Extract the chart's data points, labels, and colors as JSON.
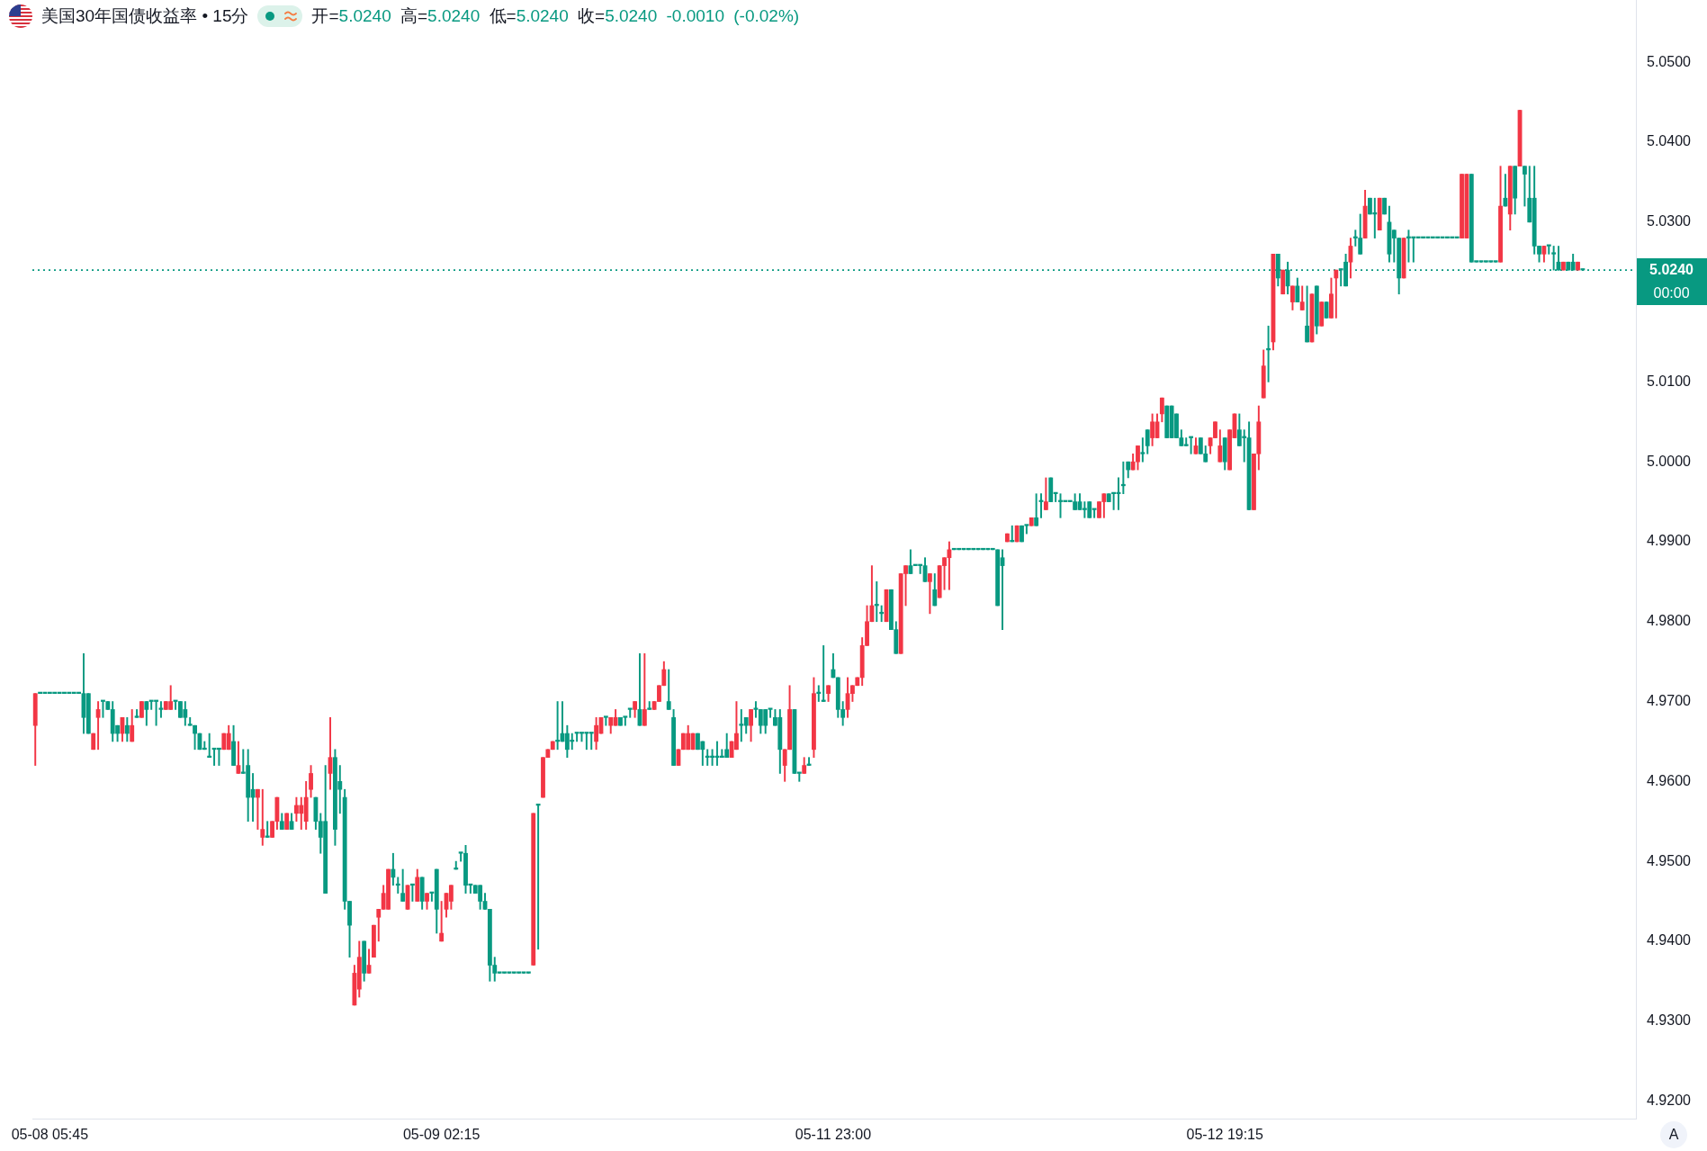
{
  "chart_data": {
    "type": "candlestick",
    "title": "美国30年国债收益率 • 15分",
    "subtitle": "开=5.0240 高=5.0240 低=5.0240 收=5.0240 -0.0010 (-0.02%)",
    "categories": [
      null,
      null,
      null,
      "05-08 05:45",
      null,
      null,
      null,
      null,
      null,
      null,
      null,
      null,
      null,
      null,
      null,
      null,
      null,
      null,
      null,
      null,
      null,
      null,
      null,
      null,
      null,
      null,
      null,
      null,
      null,
      null,
      null,
      null,
      null,
      null,
      null,
      null,
      null,
      null,
      null,
      null,
      null,
      null,
      null,
      null,
      null,
      null,
      null,
      null,
      null,
      null,
      null,
      null,
      null,
      null,
      null,
      null,
      null,
      null,
      null,
      null,
      null,
      null,
      null,
      null,
      null,
      null,
      null,
      null,
      null,
      null,
      null,
      null,
      null,
      null,
      null,
      null,
      null,
      null,
      null,
      null,
      null,
      null,
      null,
      null,
      "05-09 02:15",
      null,
      null,
      null,
      null,
      null,
      null,
      null,
      null,
      null,
      null,
      null,
      null,
      null,
      null,
      null,
      null,
      null,
      null,
      null,
      null,
      null,
      null,
      null,
      null,
      null,
      null,
      null,
      null,
      null,
      null,
      null,
      null,
      null,
      null,
      null,
      null,
      null,
      null,
      null,
      null,
      null,
      null,
      null,
      null,
      null,
      null,
      null,
      null,
      null,
      null,
      null,
      null,
      null,
      null,
      null,
      null,
      null,
      null,
      null,
      null,
      null,
      null,
      null,
      null,
      null,
      null,
      null,
      null,
      null,
      null,
      null,
      null,
      null,
      null,
      null,
      null,
      null,
      null,
      null,
      null,
      "05-11 23:00",
      null,
      null,
      null,
      null,
      null,
      null,
      null,
      null,
      null,
      null,
      null,
      null,
      null,
      null,
      null,
      null,
      null,
      null,
      null,
      null,
      null,
      null,
      null,
      null,
      null,
      null,
      null,
      null,
      null,
      null,
      null,
      null,
      null,
      null,
      null,
      null,
      null,
      null,
      null,
      null,
      null,
      null,
      null,
      null,
      null,
      null,
      null,
      null,
      null,
      null,
      null,
      null,
      null,
      null,
      null,
      null,
      null,
      null,
      null,
      null,
      null,
      null,
      null,
      null,
      null,
      null,
      null,
      null,
      null,
      null,
      null,
      null,
      null,
      null,
      null,
      null,
      null,
      null,
      null,
      null,
      "05-12 19:15",
      null,
      null,
      null,
      null,
      null,
      null,
      null,
      null,
      null,
      null,
      null,
      null,
      null,
      null,
      null,
      null,
      null,
      null,
      null,
      null,
      null,
      null,
      null,
      null,
      null,
      null,
      null,
      null,
      null,
      null,
      null,
      null,
      null,
      null,
      null,
      null,
      null,
      null,
      null,
      null,
      null,
      null,
      null,
      null,
      null,
      null,
      null,
      null,
      null,
      null,
      null,
      null,
      null,
      null,
      null,
      null,
      null,
      null,
      null,
      null,
      null,
      null,
      null,
      null,
      null,
      null,
      null,
      null,
      null,
      null,
      null,
      null,
      null,
      null
    ],
    "ohlc": [
      [
        4.967,
        4.971,
        4.962,
        4.971
      ],
      [
        4.971,
        4.971,
        4.971,
        4.971
      ],
      [
        4.971,
        4.971,
        4.971,
        4.971
      ],
      [
        4.971,
        4.971,
        4.971,
        4.971
      ],
      [
        4.971,
        4.971,
        4.971,
        4.971
      ],
      [
        4.971,
        4.971,
        4.971,
        4.971
      ],
      [
        4.971,
        4.971,
        4.971,
        4.971
      ],
      [
        4.971,
        4.971,
        4.971,
        4.971
      ],
      [
        4.971,
        4.971,
        4.971,
        4.971
      ],
      [
        4.971,
        4.971,
        4.971,
        4.971
      ],
      [
        4.971,
        4.976,
        4.966,
        4.968
      ],
      [
        4.971,
        4.971,
        4.966,
        4.966
      ],
      [
        4.964,
        4.966,
        4.964,
        4.966
      ],
      [
        4.968,
        4.97,
        4.964,
        4.969
      ],
      [
        4.97,
        4.97,
        4.968,
        4.97
      ],
      [
        4.97,
        4.97,
        4.969,
        4.969
      ],
      [
        4.969,
        4.97,
        4.965,
        4.966
      ],
      [
        4.967,
        4.967,
        4.965,
        4.966
      ],
      [
        4.966,
        4.968,
        4.965,
        4.968
      ],
      [
        4.967,
        4.968,
        4.965,
        4.966
      ],
      [
        4.965,
        4.969,
        4.965,
        4.967
      ],
      [
        4.968,
        4.969,
        4.968,
        4.968
      ],
      [
        4.968,
        4.97,
        4.968,
        4.97
      ],
      [
        4.97,
        4.97,
        4.967,
        4.969
      ],
      [
        4.97,
        4.97,
        4.969,
        4.97
      ],
      [
        4.97,
        4.97,
        4.967,
        4.97
      ],
      [
        4.969,
        4.97,
        4.968,
        4.969
      ],
      [
        4.969,
        4.97,
        4.969,
        4.97
      ],
      [
        4.969,
        4.972,
        4.969,
        4.97
      ],
      [
        4.97,
        4.97,
        4.969,
        4.97
      ],
      [
        4.97,
        4.97,
        4.968,
        4.968
      ],
      [
        4.969,
        4.97,
        4.967,
        4.968
      ],
      [
        4.967,
        4.968,
        4.967,
        4.967
      ],
      [
        4.967,
        4.967,
        4.964,
        4.966
      ],
      [
        4.966,
        4.966,
        4.964,
        4.964
      ],
      [
        4.964,
        4.965,
        4.964,
        4.964
      ],
      [
        4.963,
        4.966,
        4.963,
        4.963
      ],
      [
        4.964,
        4.964,
        4.962,
        4.964
      ],
      [
        4.964,
        4.964,
        4.962,
        4.964
      ],
      [
        4.964,
        4.966,
        4.964,
        4.966
      ],
      [
        4.964,
        4.967,
        4.964,
        4.966
      ],
      [
        4.965,
        4.967,
        4.962,
        4.962
      ],
      [
        4.961,
        4.965,
        4.961,
        4.962
      ],
      [
        4.961,
        4.964,
        4.961,
        4.961
      ],
      [
        4.962,
        4.964,
        4.955,
        4.958
      ],
      [
        4.959,
        4.961,
        4.955,
        4.958
      ],
      [
        4.958,
        4.959,
        4.954,
        4.959
      ],
      [
        4.953,
        4.959,
        4.952,
        4.954
      ],
      [
        4.953,
        4.955,
        4.953,
        4.953
      ],
      [
        4.953,
        4.955,
        4.953,
        4.955
      ],
      [
        4.955,
        4.958,
        4.954,
        4.958
      ],
      [
        4.955,
        4.956,
        4.954,
        4.954
      ],
      [
        4.954,
        4.956,
        4.954,
        4.956
      ],
      [
        4.955,
        4.956,
        4.954,
        4.954
      ],
      [
        4.956,
        4.958,
        4.955,
        4.957
      ],
      [
        4.956,
        4.958,
        4.954,
        4.957
      ],
      [
        4.955,
        4.96,
        4.954,
        4.958
      ],
      [
        4.959,
        4.962,
        4.958,
        4.961
      ],
      [
        4.958,
        4.958,
        4.954,
        4.955
      ],
      [
        4.955,
        4.956,
        4.951,
        4.953
      ],
      [
        4.955,
        4.962,
        4.946,
        4.946
      ],
      [
        4.961,
        4.968,
        4.959,
        4.963
      ],
      [
        4.963,
        4.964,
        4.952,
        4.954
      ],
      [
        4.96,
        4.962,
        4.956,
        4.959
      ],
      [
        4.958,
        4.959,
        4.944,
        4.945
      ],
      [
        4.945,
        4.945,
        4.938,
        4.942
      ],
      [
        4.932,
        4.937,
        4.932,
        4.936
      ],
      [
        4.934,
        4.94,
        4.933,
        4.938
      ],
      [
        4.94,
        4.94,
        4.935,
        4.936
      ],
      [
        4.936,
        4.939,
        4.936,
        4.937
      ],
      [
        4.938,
        4.942,
        4.938,
        4.942
      ],
      [
        4.943,
        4.944,
        4.94,
        4.944
      ],
      [
        4.944,
        4.947,
        4.944,
        4.946
      ],
      [
        4.944,
        4.949,
        4.944,
        4.949
      ],
      [
        4.949,
        4.951,
        4.947,
        4.948
      ],
      [
        4.947,
        4.948,
        4.946,
        4.947
      ],
      [
        4.946,
        4.949,
        4.945,
        4.945
      ],
      [
        4.944,
        4.947,
        4.944,
        4.947
      ],
      [
        4.947,
        4.947,
        4.945,
        4.947
      ],
      [
        4.945,
        4.949,
        4.945,
        4.948
      ],
      [
        4.948,
        4.948,
        4.944,
        4.945
      ],
      [
        4.945,
        4.946,
        4.944,
        4.946
      ],
      [
        4.946,
        4.946,
        4.945,
        4.946
      ],
      [
        4.949,
        4.949,
        4.941,
        4.944
      ],
      [
        4.94,
        4.945,
        4.94,
        4.941
      ],
      [
        4.944,
        4.946,
        4.943,
        4.946
      ],
      [
        4.945,
        4.947,
        4.944,
        4.947
      ],
      [
        4.949,
        4.95,
        4.949,
        4.949
      ],
      [
        4.951,
        4.951,
        4.95,
        4.951
      ],
      [
        4.951,
        4.952,
        4.946,
        4.947
      ],
      [
        4.947,
        4.947,
        4.946,
        4.947
      ],
      [
        4.947,
        4.947,
        4.946,
        4.946
      ],
      [
        4.947,
        4.947,
        4.944,
        4.945
      ],
      [
        4.945,
        4.946,
        4.944,
        4.944
      ],
      [
        4.944,
        4.944,
        4.935,
        4.937
      ],
      [
        4.937,
        4.938,
        4.935,
        4.936
      ],
      [
        4.936,
        4.936,
        4.936,
        4.936
      ],
      [
        4.936,
        4.936,
        4.936,
        4.936
      ],
      [
        4.936,
        4.936,
        4.936,
        4.936
      ],
      [
        4.936,
        4.936,
        4.936,
        4.936
      ],
      [
        4.936,
        4.936,
        4.936,
        4.936
      ],
      [
        4.936,
        4.936,
        4.936,
        4.936
      ],
      [
        4.936,
        4.936,
        4.936,
        4.936
      ],
      [
        4.937,
        4.956,
        4.937,
        4.956
      ],
      [
        4.957,
        4.957,
        4.939,
        4.957
      ],
      [
        4.958,
        4.963,
        4.958,
        4.963
      ],
      [
        4.963,
        4.964,
        4.963,
        4.964
      ],
      [
        4.964,
        4.965,
        4.964,
        4.965
      ],
      [
        4.965,
        4.97,
        4.964,
        4.965
      ],
      [
        4.966,
        4.97,
        4.965,
        4.965
      ],
      [
        4.966,
        4.967,
        4.963,
        4.964
      ],
      [
        4.965,
        4.966,
        4.964,
        4.965
      ],
      [
        4.966,
        4.966,
        4.965,
        4.966
      ],
      [
        4.966,
        4.966,
        4.965,
        4.966
      ],
      [
        4.966,
        4.966,
        4.964,
        4.966
      ],
      [
        4.966,
        4.966,
        4.964,
        4.966
      ],
      [
        4.965,
        4.968,
        4.964,
        4.967
      ],
      [
        4.966,
        4.968,
        4.966,
        4.968
      ],
      [
        4.968,
        4.968,
        4.967,
        4.968
      ],
      [
        4.967,
        4.968,
        4.966,
        4.968
      ],
      [
        4.967,
        4.969,
        4.967,
        4.968
      ],
      [
        4.968,
        4.968,
        4.967,
        4.967
      ],
      [
        4.968,
        4.968,
        4.967,
        4.968
      ],
      [
        4.969,
        4.969,
        4.968,
        4.969
      ],
      [
        4.969,
        4.97,
        4.968,
        4.97
      ],
      [
        4.969,
        4.976,
        4.967,
        4.967
      ],
      [
        4.967,
        4.976,
        4.967,
        4.969
      ],
      [
        4.969,
        4.97,
        4.969,
        4.969
      ],
      [
        4.969,
        4.97,
        4.969,
        4.97
      ],
      [
        4.97,
        4.972,
        4.97,
        4.972
      ],
      [
        4.972,
        4.975,
        4.972,
        4.974
      ],
      [
        4.97,
        4.974,
        4.969,
        4.969
      ],
      [
        4.968,
        4.969,
        4.962,
        4.962
      ],
      [
        4.962,
        4.964,
        4.962,
        4.964
      ],
      [
        4.964,
        4.966,
        4.964,
        4.966
      ],
      [
        4.964,
        4.967,
        4.964,
        4.966
      ],
      [
        4.964,
        4.966,
        4.964,
        4.966
      ],
      [
        4.966,
        4.966,
        4.964,
        4.964
      ],
      [
        4.965,
        4.965,
        4.962,
        4.964
      ],
      [
        4.963,
        4.964,
        4.962,
        4.963
      ],
      [
        4.963,
        4.964,
        4.962,
        4.963
      ],
      [
        4.963,
        4.965,
        4.962,
        4.963
      ],
      [
        4.963,
        4.964,
        4.963,
        4.963
      ],
      [
        4.964,
        4.966,
        4.963,
        4.963
      ],
      [
        4.963,
        4.965,
        4.963,
        4.965
      ],
      [
        4.964,
        4.97,
        4.964,
        4.966
      ],
      [
        4.967,
        4.969,
        4.965,
        4.967
      ],
      [
        4.968,
        4.968,
        4.966,
        4.967
      ],
      [
        4.967,
        4.969,
        4.965,
        4.969
      ],
      [
        4.969,
        4.97,
        4.968,
        4.969
      ],
      [
        4.969,
        4.969,
        4.966,
        4.967
      ],
      [
        4.969,
        4.969,
        4.966,
        4.967
      ],
      [
        4.969,
        4.969,
        4.968,
        4.969
      ],
      [
        4.968,
        4.969,
        4.967,
        4.967
      ],
      [
        4.968,
        4.969,
        4.961,
        4.964
      ],
      [
        4.962,
        4.964,
        4.96,
        4.964
      ],
      [
        4.964,
        4.972,
        4.964,
        4.969
      ],
      [
        4.969,
        4.969,
        4.961,
        4.961
      ],
      [
        4.961,
        4.961,
        4.96,
        4.961
      ],
      [
        4.961,
        4.963,
        4.961,
        4.962
      ],
      [
        4.962,
        4.963,
        4.962,
        4.962
      ],
      [
        4.964,
        4.973,
        4.963,
        4.971
      ],
      [
        4.971,
        4.972,
        4.97,
        4.971
      ],
      [
        4.97,
        4.977,
        4.97,
        4.97
      ],
      [
        4.971,
        4.972,
        4.97,
        4.972
      ],
      [
        4.974,
        4.976,
        4.973,
        4.973
      ],
      [
        4.973,
        4.973,
        4.968,
        4.969
      ],
      [
        4.969,
        4.97,
        4.967,
        4.968
      ],
      [
        4.969,
        4.973,
        4.968,
        4.971
      ],
      [
        4.971,
        4.972,
        4.97,
        4.972
      ],
      [
        4.972,
        4.973,
        4.972,
        4.973
      ],
      [
        4.973,
        4.978,
        4.972,
        4.977
      ],
      [
        4.977,
        4.982,
        4.977,
        4.98
      ],
      [
        4.98,
        4.987,
        4.98,
        4.982
      ],
      [
        4.982,
        4.985,
        4.98,
        4.982
      ],
      [
        4.981,
        4.982,
        4.98,
        4.981
      ],
      [
        4.98,
        4.984,
        4.98,
        4.984
      ],
      [
        4.984,
        4.984,
        4.979,
        4.979
      ],
      [
        4.979,
        4.98,
        4.976,
        4.976
      ],
      [
        4.976,
        4.986,
        4.976,
        4.986
      ],
      [
        4.986,
        4.987,
        4.982,
        4.987
      ],
      [
        4.987,
        4.989,
        4.986,
        4.986
      ],
      [
        4.987,
        4.987,
        4.987,
        4.987
      ],
      [
        4.987,
        4.987,
        4.986,
        4.987
      ],
      [
        4.987,
        4.988,
        4.985,
        4.985
      ],
      [
        4.985,
        4.986,
        4.981,
        4.986
      ],
      [
        4.984,
        4.986,
        4.982,
        4.982
      ],
      [
        4.983,
        4.987,
        4.983,
        4.987
      ],
      [
        4.987,
        4.988,
        4.984,
        4.988
      ],
      [
        4.988,
        4.99,
        4.984,
        4.989
      ],
      [
        4.989,
        4.989,
        4.989,
        4.989
      ],
      [
        4.989,
        4.989,
        4.989,
        4.989
      ],
      [
        4.989,
        4.989,
        4.989,
        4.989
      ],
      [
        4.989,
        4.989,
        4.989,
        4.989
      ],
      [
        4.989,
        4.989,
        4.989,
        4.989
      ],
      [
        4.989,
        4.989,
        4.989,
        4.989
      ],
      [
        4.989,
        4.989,
        4.989,
        4.989
      ],
      [
        4.989,
        4.989,
        4.989,
        4.989
      ],
      [
        4.989,
        4.989,
        4.989,
        4.989
      ],
      [
        4.989,
        4.989,
        4.982,
        4.982
      ],
      [
        4.988,
        4.989,
        4.979,
        4.987
      ],
      [
        4.99,
        4.991,
        4.99,
        4.991
      ],
      [
        4.99,
        4.992,
        4.99,
        4.99
      ],
      [
        4.99,
        4.992,
        4.99,
        4.992
      ],
      [
        4.992,
        4.992,
        4.99,
        4.99
      ],
      [
        4.992,
        4.992,
        4.991,
        4.992
      ],
      [
        4.992,
        4.993,
        4.992,
        4.993
      ],
      [
        4.993,
        4.996,
        4.992,
        4.992
      ],
      [
        4.995,
        4.996,
        4.993,
        4.995
      ],
      [
        4.994,
        4.998,
        4.994,
        4.995
      ],
      [
        4.998,
        4.998,
        4.995,
        4.995
      ],
      [
        4.996,
        4.996,
        4.995,
        4.996
      ],
      [
        4.995,
        4.996,
        4.993,
        4.995
      ],
      [
        4.995,
        4.995,
        4.995,
        4.995
      ],
      [
        4.995,
        4.995,
        4.995,
        4.995
      ],
      [
        4.995,
        4.996,
        4.994,
        4.994
      ],
      [
        4.995,
        4.996,
        4.994,
        4.994
      ],
      [
        4.994,
        4.995,
        4.993,
        4.994
      ],
      [
        4.995,
        4.995,
        4.993,
        4.993
      ],
      [
        4.994,
        4.994,
        4.993,
        4.994
      ],
      [
        4.993,
        4.995,
        4.993,
        4.995
      ],
      [
        4.995,
        4.996,
        4.993,
        4.996
      ],
      [
        4.996,
        4.996,
        4.995,
        4.995
      ],
      [
        4.996,
        4.996,
        4.994,
        4.996
      ],
      [
        4.996,
        4.998,
        4.994,
        4.996
      ],
      [
        4.997,
        5.0,
        4.996,
        4.997
      ],
      [
        5.0,
        5.0,
        4.998,
        4.999
      ],
      [
        4.999,
        5.001,
        4.999,
        5.0
      ],
      [
        5.0,
        5.002,
        4.999,
        5.002
      ],
      [
        5.001,
        5.003,
        5.0,
        5.001
      ],
      [
        5.004,
        5.004,
        5.001,
        5.002
      ],
      [
        5.003,
        5.006,
        5.002,
        5.005
      ],
      [
        5.003,
        5.006,
        5.003,
        5.005
      ],
      [
        5.006,
        5.008,
        5.005,
        5.008
      ],
      [
        5.007,
        5.007,
        5.003,
        5.003
      ],
      [
        5.007,
        5.007,
        5.003,
        5.003
      ],
      [
        5.006,
        5.006,
        5.003,
        5.003
      ],
      [
        5.003,
        5.004,
        5.002,
        5.002
      ],
      [
        5.002,
        5.003,
        5.002,
        5.002
      ],
      [
        5.003,
        5.003,
        5.001,
        5.003
      ],
      [
        5.001,
        5.003,
        5.001,
        5.002
      ],
      [
        5.003,
        5.003,
        5.001,
        5.001
      ],
      [
        5.001,
        5.002,
        5.0,
        5.0
      ],
      [
        5.002,
        5.003,
        5.001,
        5.003
      ],
      [
        5.003,
        5.005,
        5.003,
        5.005
      ],
      [
        5.0,
        5.004,
        5.0,
        5.002
      ],
      [
        5.003,
        5.003,
        4.999,
        5.0
      ],
      [
        4.999,
        5.004,
        4.999,
        5.004
      ],
      [
        5.003,
        5.006,
        5.003,
        5.006
      ],
      [
        5.004,
        5.006,
        5.002,
        5.002
      ],
      [
        5.003,
        5.004,
        5.0,
        5.003
      ],
      [
        5.003,
        5.005,
        4.994,
        4.994
      ],
      [
        4.994,
        5.001,
        4.994,
        5.001
      ],
      [
        5.001,
        5.007,
        4.999,
        5.005
      ],
      [
        5.008,
        5.014,
        5.008,
        5.012
      ],
      [
        5.014,
        5.017,
        5.01,
        5.014
      ],
      [
        5.015,
        5.026,
        5.014,
        5.026
      ],
      [
        5.026,
        5.026,
        5.022,
        5.023
      ],
      [
        5.021,
        5.024,
        5.021,
        5.024
      ],
      [
        5.024,
        5.025,
        5.021,
        5.022
      ],
      [
        5.02,
        5.022,
        5.019,
        5.022
      ],
      [
        5.022,
        5.023,
        5.02,
        5.02
      ],
      [
        5.019,
        5.022,
        5.019,
        5.02
      ],
      [
        5.017,
        5.022,
        5.015,
        5.015
      ],
      [
        5.015,
        5.021,
        5.015,
        5.021
      ],
      [
        5.022,
        5.022,
        5.016,
        5.017
      ],
      [
        5.017,
        5.02,
        5.017,
        5.02
      ],
      [
        5.02,
        5.02,
        5.018,
        5.018
      ],
      [
        5.018,
        5.023,
        5.018,
        5.021
      ],
      [
        5.023,
        5.024,
        5.018,
        5.024
      ],
      [
        5.024,
        5.024,
        5.022,
        5.024
      ],
      [
        5.025,
        5.026,
        5.022,
        5.022
      ],
      [
        5.025,
        5.028,
        5.023,
        5.027
      ],
      [
        5.028,
        5.029,
        5.027,
        5.028
      ],
      [
        5.028,
        5.031,
        5.026,
        5.026
      ],
      [
        5.028,
        5.034,
        5.028,
        5.032
      ],
      [
        5.033,
        5.033,
        5.031,
        5.031
      ],
      [
        5.031,
        5.033,
        5.028,
        5.031
      ],
      [
        5.029,
        5.033,
        5.029,
        5.033
      ],
      [
        5.033,
        5.033,
        5.031,
        5.031
      ],
      [
        5.03,
        5.032,
        5.025,
        5.026
      ],
      [
        5.029,
        5.029,
        5.025,
        5.028
      ],
      [
        5.028,
        5.028,
        5.021,
        5.023
      ],
      [
        5.023,
        5.028,
        5.023,
        5.028
      ],
      [
        5.028,
        5.029,
        5.025,
        5.028
      ],
      [
        5.028,
        5.028,
        5.025,
        5.028
      ],
      [
        5.028,
        5.028,
        5.028,
        5.028
      ],
      [
        5.028,
        5.028,
        5.028,
        5.028
      ],
      [
        5.028,
        5.028,
        5.028,
        5.028
      ],
      [
        5.028,
        5.028,
        5.028,
        5.028
      ],
      [
        5.028,
        5.028,
        5.028,
        5.028
      ],
      [
        5.028,
        5.028,
        5.028,
        5.028
      ],
      [
        5.028,
        5.028,
        5.028,
        5.028
      ],
      [
        5.028,
        5.028,
        5.028,
        5.028
      ],
      [
        5.028,
        5.028,
        5.028,
        5.028
      ],
      [
        5.028,
        5.036,
        5.028,
        5.036
      ],
      [
        5.028,
        5.036,
        5.028,
        5.036
      ],
      [
        5.036,
        5.036,
        5.025,
        5.025
      ],
      [
        5.025,
        5.025,
        5.025,
        5.025
      ],
      [
        5.025,
        5.025,
        5.025,
        5.025
      ],
      [
        5.025,
        5.025,
        5.025,
        5.025
      ],
      [
        5.025,
        5.025,
        5.025,
        5.025
      ],
      [
        5.025,
        5.025,
        5.025,
        5.025
      ],
      [
        5.025,
        5.037,
        5.025,
        5.032
      ],
      [
        5.033,
        5.036,
        5.032,
        5.032
      ],
      [
        5.031,
        5.037,
        5.029,
        5.037
      ],
      [
        5.037,
        5.037,
        5.031,
        5.033
      ],
      [
        5.037,
        5.044,
        5.037,
        5.044
      ],
      [
        5.037,
        5.037,
        5.032,
        5.036
      ],
      [
        5.033,
        5.037,
        5.03,
        5.03
      ],
      [
        5.033,
        5.037,
        5.026,
        5.027
      ],
      [
        5.027,
        5.027,
        5.025,
        5.026
      ],
      [
        5.026,
        5.027,
        5.025,
        5.027
      ],
      [
        5.027,
        5.027,
        5.026,
        5.027
      ],
      [
        5.026,
        5.027,
        5.024,
        5.026
      ],
      [
        5.025,
        5.027,
        5.024,
        5.024
      ],
      [
        5.024,
        5.025,
        5.024,
        5.025
      ],
      [
        5.025,
        5.025,
        5.024,
        5.024
      ],
      [
        5.025,
        5.026,
        5.024,
        5.024
      ],
      [
        5.024,
        5.025,
        5.024,
        5.025
      ],
      [
        5.024,
        5.024,
        5.024,
        5.024
      ]
    ],
    "colors": [
      "#f23645",
      "#089981",
      "#089981",
      "#089981",
      "#089981",
      "#089981",
      "#089981",
      "#089981",
      "#089981",
      "#089981",
      "#089981",
      "#089981",
      "#f23645",
      "#f23645",
      "#089981",
      "#089981",
      "#089981",
      "#089981",
      "#f23645",
      "#089981",
      "#f23645",
      "#089981",
      "#f23645",
      "#089981",
      "#089981",
      "#089981",
      "#089981",
      "#f23645",
      "#f23645",
      "#089981",
      "#089981",
      "#089981",
      "#089981",
      "#089981",
      "#089981",
      "#089981",
      "#089981",
      "#089981",
      "#089981",
      "#f23645",
      "#f23645",
      "#089981",
      "#f23645",
      "#089981",
      "#089981",
      "#089981",
      "#f23645",
      "#f23645",
      "#089981",
      "#f23645",
      "#f23645",
      "#089981",
      "#f23645",
      "#089981",
      "#f23645",
      "#f23645",
      "#f23645",
      "#f23645",
      "#089981",
      "#089981",
      "#089981",
      "#f23645",
      "#089981",
      "#089981",
      "#089981",
      "#089981",
      "#f23645",
      "#f23645",
      "#089981",
      "#f23645",
      "#f23645",
      "#f23645",
      "#f23645",
      "#f23645",
      "#089981",
      "#089981",
      "#089981",
      "#f23645",
      "#089981",
      "#f23645",
      "#089981",
      "#f23645",
      "#089981",
      "#089981",
      "#f23645",
      "#f23645",
      "#f23645",
      "#089981",
      "#089981",
      "#089981",
      "#089981",
      "#089981",
      "#089981",
      "#089981",
      "#089981",
      "#089981",
      "#089981",
      "#089981",
      "#089981",
      "#089981",
      "#089981",
      "#089981",
      "#089981",
      "#f23645",
      "#089981",
      "#f23645",
      "#f23645",
      "#f23645",
      "#089981",
      "#089981",
      "#089981",
      "#089981",
      "#089981",
      "#089981",
      "#089981",
      "#089981",
      "#f23645",
      "#f23645",
      "#089981",
      "#f23645",
      "#f23645",
      "#089981",
      "#089981",
      "#089981",
      "#f23645",
      "#089981",
      "#f23645",
      "#089981",
      "#f23645",
      "#f23645",
      "#f23645",
      "#089981",
      "#089981",
      "#f23645",
      "#f23645",
      "#f23645",
      "#f23645",
      "#089981",
      "#089981",
      "#089981",
      "#089981",
      "#089981",
      "#089981",
      "#089981",
      "#f23645",
      "#f23645",
      "#089981",
      "#089981",
      "#f23645",
      "#089981",
      "#089981",
      "#089981",
      "#089981",
      "#089981",
      "#089981",
      "#f23645",
      "#f23645",
      "#089981",
      "#089981",
      "#f23645",
      "#089981",
      "#f23645",
      "#089981",
      "#089981",
      "#f23645",
      "#089981",
      "#089981",
      "#089981",
      "#f23645",
      "#f23645",
      "#f23645",
      "#f23645",
      "#f23645",
      "#f23645",
      "#089981",
      "#089981",
      "#f23645",
      "#089981",
      "#089981",
      "#f23645",
      "#f23645",
      "#089981",
      "#089981",
      "#089981",
      "#089981",
      "#f23645",
      "#089981",
      "#f23645",
      "#f23645",
      "#f23645",
      "#089981",
      "#089981",
      "#089981",
      "#089981",
      "#089981",
      "#089981",
      "#089981",
      "#089981",
      "#089981",
      "#089981",
      "#089981",
      "#f23645",
      "#089981",
      "#f23645",
      "#089981",
      "#089981",
      "#f23645",
      "#089981",
      "#089981",
      "#f23645",
      "#089981",
      "#089981",
      "#089981",
      "#089981",
      "#089981",
      "#089981",
      "#089981",
      "#089981",
      "#089981",
      "#089981",
      "#f23645",
      "#f23645",
      "#089981",
      "#089981",
      "#089981",
      "#089981",
      "#089981",
      "#f23645",
      "#f23645",
      "#089981",
      "#089981",
      "#f23645",
      "#f23645",
      "#f23645",
      "#089981",
      "#089981",
      "#089981",
      "#089981",
      "#089981",
      "#089981",
      "#f23645",
      "#089981",
      "#089981",
      "#f23645",
      "#f23645",
      "#f23645",
      "#089981",
      "#f23645",
      "#f23645",
      "#089981",
      "#089981",
      "#089981",
      "#f23645",
      "#f23645",
      "#f23645",
      "#089981",
      "#f23645",
      "#089981",
      "#f23645",
      "#089981",
      "#f23645",
      "#089981",
      "#f23645",
      "#089981",
      "#f23645",
      "#089981",
      "#f23645",
      "#089981",
      "#f23645",
      "#f23645",
      "#089981",
      "#089981",
      "#f23645",
      "#089981",
      "#089981",
      "#f23645",
      "#089981",
      "#089981",
      "#f23645",
      "#089981",
      "#089981",
      "#089981",
      "#089981",
      "#f23645",
      "#089981",
      "#089981",
      "#089981",
      "#089981",
      "#089981",
      "#089981",
      "#089981",
      "#089981",
      "#089981",
      "#089981",
      "#089981",
      "#f23645",
      "#f23645",
      "#089981",
      "#089981",
      "#089981",
      "#089981",
      "#089981",
      "#089981",
      "#f23645",
      "#089981",
      "#f23645",
      "#089981",
      "#f23645",
      "#089981",
      "#089981",
      "#089981",
      "#089981",
      "#f23645",
      "#089981",
      "#089981",
      "#089981",
      "#f23645",
      "#089981",
      "#089981",
      "#f23645",
      "#089981"
    ],
    "ylim": [
      4.9178,
      5.0578
    ],
    "yticks": [
      {
        "value": 4.92,
        "label": "4.9200"
      },
      {
        "value": 4.93,
        "label": "4.9300"
      },
      {
        "value": 4.94,
        "label": "4.9400"
      },
      {
        "value": 4.95,
        "label": "4.9500"
      },
      {
        "value": 4.96,
        "label": "4.9600"
      },
      {
        "value": 4.97,
        "label": "4.9700"
      },
      {
        "value": 4.98,
        "label": "4.9800"
      },
      {
        "value": 4.99,
        "label": "4.9900"
      },
      {
        "value": 5.0,
        "label": "5.0000"
      },
      {
        "value": 5.01,
        "label": "5.0100"
      },
      {
        "value": 5.03,
        "label": "5.0300"
      },
      {
        "value": 5.04,
        "label": "5.0400"
      },
      {
        "value": 5.05,
        "label": "5.0500"
      }
    ],
    "ref_lines": [
      {
        "axis": "y",
        "value": 5.024,
        "label": "5.0240",
        "color": "#089981",
        "line_style": "dotted"
      }
    ],
    "annotations": [
      "00:00",
      "A"
    ]
  }
}
